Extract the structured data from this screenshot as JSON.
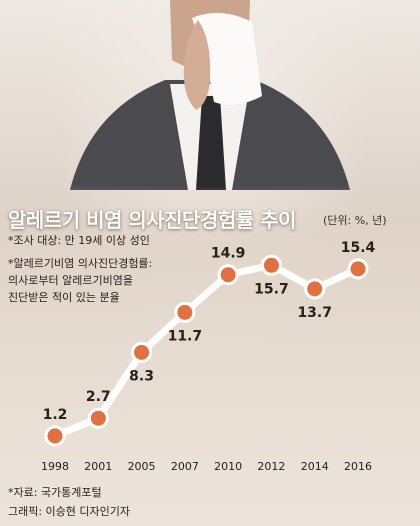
{
  "title": "알레르기 비염 의사진단경험률 추이",
  "unit": "(단위: %, 년)",
  "notes": [
    "*조사 대상: 만 19세 이상 성인",
    "*알레르기비염 의사진단경험률:",
    "의사로부터 알레르기비염을",
    "진단받은 적이 있는 분율"
  ],
  "source": "*자료: 국가통계포털",
  "credit": "그래픽: 이승현 디자인기자",
  "colors": {
    "marker": "#e07140",
    "line": "#ffffff",
    "title": "#ffffff"
  },
  "chart_data": {
    "type": "line",
    "title": "알레르기 비염 의사진단경험률 추이",
    "xlabel": "",
    "ylabel": "",
    "categories": [
      "1998",
      "2001",
      "2005",
      "2007",
      "2010",
      "2012",
      "2014",
      "2016"
    ],
    "series": [
      {
        "values": [
          1.2,
          2.7,
          8.3,
          11.7,
          14.9,
          15.7,
          13.7,
          15.4
        ]
      }
    ],
    "data_labels": [
      "1.2",
      "2.7",
      "8.3",
      "11.7",
      "14.9",
      "15.7",
      "13.7",
      "15.4"
    ],
    "label_positions": [
      "above",
      "above",
      "below",
      "below",
      "above",
      "below",
      "below",
      "above"
    ],
    "ylim": [
      0,
      17
    ],
    "grid": false,
    "legend": "none"
  }
}
